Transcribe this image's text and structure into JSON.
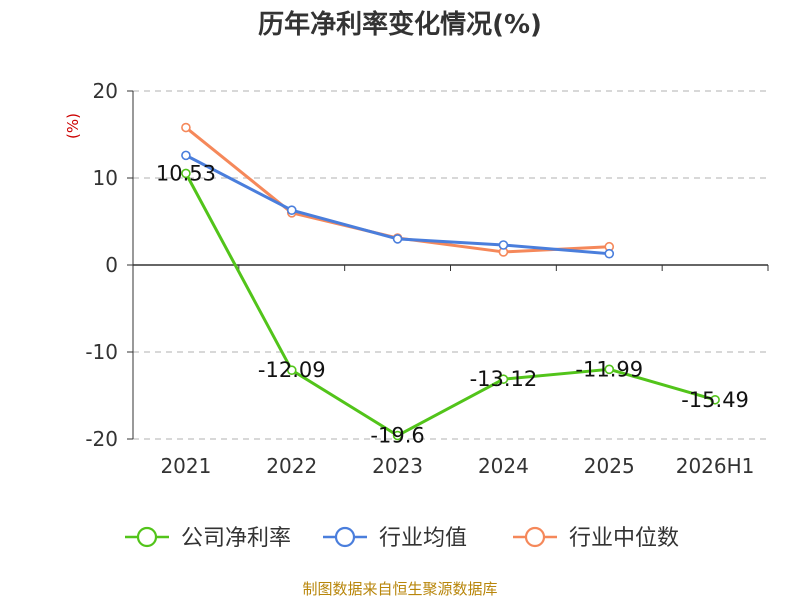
{
  "title": "历年净利率变化情况(%)",
  "footer": "制图数据来自恒生聚源数据库",
  "colors": {
    "company": "#52c41a",
    "industry_avg": "#4a7edc",
    "industry_median": "#f5885a",
    "grid": "#cccccc",
    "axis": "#333333",
    "unit_label": "#cc0000"
  },
  "chart_data": {
    "type": "line",
    "title": "历年净利率变化情况(%)",
    "ylabel": "(%)",
    "ylim": [
      -20,
      20
    ],
    "yticks": [
      20,
      10,
      0,
      -10,
      -20
    ],
    "grid": true,
    "legend_position": "bottom",
    "categories": [
      "2021",
      "2022",
      "2023",
      "2024",
      "2025",
      "2026H1"
    ],
    "series": [
      {
        "name": "公司净利率",
        "color_key": "company",
        "values": [
          10.53,
          -12.09,
          -19.6,
          -13.12,
          -11.99,
          -15.49
        ],
        "labels": [
          "10.53",
          "-12.09",
          "-19.6",
          "-13.12",
          "-11.99",
          "-15.49"
        ]
      },
      {
        "name": "行业均值",
        "color_key": "industry_avg",
        "values": [
          12.6,
          6.3,
          3.0,
          2.3,
          1.3,
          null
        ]
      },
      {
        "name": "行业中位数",
        "color_key": "industry_median",
        "values": [
          15.8,
          6.0,
          3.1,
          1.5,
          2.1,
          null
        ]
      }
    ]
  }
}
